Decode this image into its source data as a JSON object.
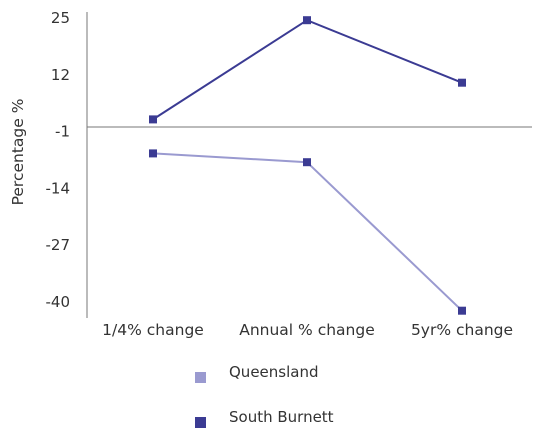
{
  "chart_data": {
    "type": "line",
    "categories": [
      "1/4% change",
      "Annual % change",
      "5yr% change"
    ],
    "series": [
      {
        "name": "South Burnett",
        "values": [
          1.8,
          24.5,
          10.2
        ],
        "color": "#3b3b93"
      },
      {
        "name": "Queensland",
        "values": [
          -6,
          -8,
          -42
        ],
        "color": "#9a9ad0"
      }
    ],
    "ylabel": "Percentage %",
    "xlabel": "",
    "title": "",
    "yticks": [
      25,
      12,
      -1,
      -14,
      -27,
      -40
    ],
    "ylim": [
      -44,
      27
    ],
    "grid": false,
    "legend": {
      "position": "bottom",
      "order": [
        "Queensland",
        "South Burnett"
      ]
    }
  }
}
